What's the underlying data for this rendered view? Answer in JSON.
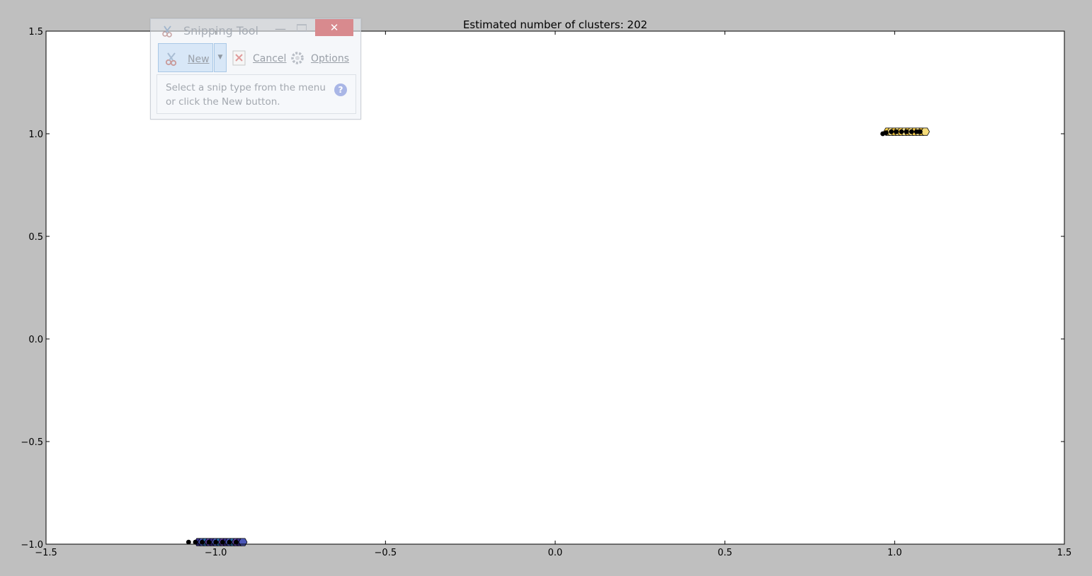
{
  "colors": {
    "figure_background": "#bfbfbf",
    "axes_background": "#ffffff",
    "centroid_color": "#000000"
  },
  "chart_data": {
    "type": "scatter",
    "title": "Estimated number of clusters: 202",
    "xlabel": "",
    "ylabel": "",
    "xlim": [
      -1.5,
      1.5
    ],
    "ylim": [
      -1.0,
      1.5
    ],
    "xticks": [
      -1.5,
      -1.0,
      -0.5,
      0.0,
      0.5,
      1.0,
      1.5
    ],
    "yticks": [
      -1.0,
      -0.5,
      0.0,
      0.5,
      1.0,
      1.5
    ],
    "xtick_labels": [
      "−1.5",
      "−1.0",
      "−0.5",
      "0.0",
      "0.5",
      "1.0",
      "1.5"
    ],
    "ytick_labels": [
      "−1.0",
      "−0.5",
      "0.0",
      "0.5",
      "1.0",
      "1.5"
    ],
    "grid": false,
    "legend": "none",
    "clusters": [
      {
        "region": "upper-right",
        "colors": [
          "#ffd24d",
          "#fde68a",
          "#e3b83a",
          "#f5dc7a"
        ],
        "center_y": 1.01,
        "points_x": [
          0.98,
          0.99,
          1.0,
          1.01,
          1.02,
          1.03,
          1.04,
          1.05,
          1.06,
          1.07,
          1.08,
          1.09
        ],
        "centroids": [
          {
            "x": 0.965,
            "y": 1.0
          },
          {
            "x": 0.975,
            "y": 1.005
          },
          {
            "x": 0.99,
            "y": 1.01
          },
          {
            "x": 1.005,
            "y": 1.01
          },
          {
            "x": 1.02,
            "y": 1.01
          },
          {
            "x": 1.035,
            "y": 1.01
          },
          {
            "x": 1.05,
            "y": 1.01
          },
          {
            "x": 1.065,
            "y": 1.01
          },
          {
            "x": 1.075,
            "y": 1.01
          }
        ]
      },
      {
        "region": "lower-left",
        "colors": [
          "#3b2f8f",
          "#4b57b8",
          "#2f6db0",
          "#5a3fa0"
        ],
        "center_y": -0.99,
        "points_x": [
          -1.05,
          -1.04,
          -1.03,
          -1.02,
          -1.01,
          -1.0,
          -0.99,
          -0.98,
          -0.97,
          -0.96,
          -0.95,
          -0.94,
          -0.93,
          -0.92
        ],
        "centroids": [
          {
            "x": -1.08,
            "y": -0.99
          },
          {
            "x": -1.06,
            "y": -0.99
          },
          {
            "x": -1.04,
            "y": -0.99
          },
          {
            "x": -1.02,
            "y": -0.99
          },
          {
            "x": -1.0,
            "y": -0.99
          },
          {
            "x": -0.98,
            "y": -0.99
          },
          {
            "x": -0.96,
            "y": -0.99
          },
          {
            "x": -0.94,
            "y": -0.99
          }
        ]
      }
    ]
  },
  "snipping_tool": {
    "title": "Snipping Tool",
    "new_label": "New",
    "cancel_label": "Cancel",
    "options_label": "Options",
    "hint": "Select a snip type from the menu or click the New button.",
    "close_glyph": "✕",
    "minimize_glyph": "—",
    "dropdown_glyph": "▼",
    "help_glyph": "?",
    "app_icon": "scissors-icon",
    "cancel_icon": "cancel-x-icon",
    "options_icon": "gear-icon",
    "help_icon": "help-icon"
  }
}
